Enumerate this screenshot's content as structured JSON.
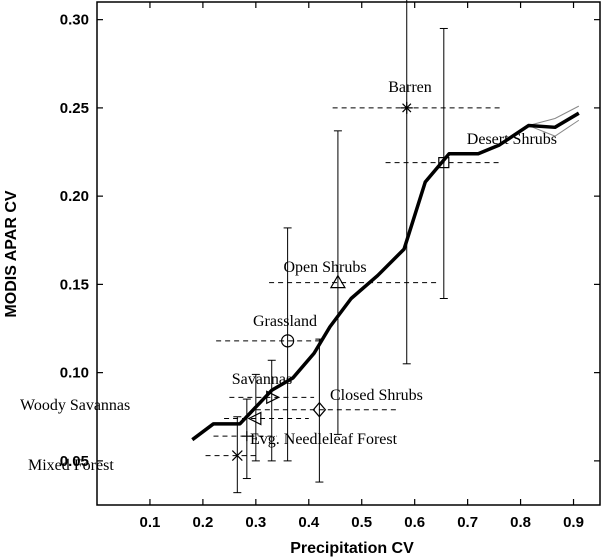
{
  "chart_data": {
    "type": "scatter",
    "xlabel": "Precipitation CV",
    "ylabel": "MODIS APAR CV",
    "xlim": [
      0.0,
      0.95
    ],
    "ylim": [
      0.025,
      0.31
    ],
    "xticks": [
      "0.1",
      "0.2",
      "0.3",
      "0.4",
      "0.5",
      "0.6",
      "0.7",
      "0.8",
      "0.9"
    ],
    "yticks": [
      "0.05",
      "0.10",
      "0.15",
      "0.20",
      "0.25",
      "0.30"
    ],
    "grid": false,
    "line": {
      "x": [
        0.18,
        0.22,
        0.27,
        0.33,
        0.37,
        0.41,
        0.44,
        0.48,
        0.53,
        0.58,
        0.62,
        0.665,
        0.72,
        0.76,
        0.815,
        0.865,
        0.91
      ],
      "y": [
        0.062,
        0.071,
        0.071,
        0.09,
        0.097,
        0.111,
        0.126,
        0.142,
        0.155,
        0.17,
        0.208,
        0.224,
        0.224,
        0.229,
        0.24,
        0.239,
        0.247
      ],
      "band_upper": [
        0.24,
        0.244,
        0.251
      ],
      "band_lower": [
        0.24,
        0.234,
        0.243
      ],
      "band_x": [
        0.815,
        0.865,
        0.91
      ]
    },
    "points": [
      {
        "label": "Barren",
        "marker": "asterisk",
        "x": 0.585,
        "y": 0.25,
        "xerr": [
          0.445,
          0.765
        ],
        "yerr": [
          0.105,
          0.32
        ]
      },
      {
        "label": "Desert Shrubs",
        "marker": "square",
        "x": 0.655,
        "y": 0.219,
        "xerr": [
          0.545,
          0.765
        ],
        "yerr": [
          0.142,
          0.295
        ]
      },
      {
        "label": "Open Shrubs",
        "marker": "triangle",
        "x": 0.455,
        "y": 0.151,
        "xerr": [
          0.325,
          0.645
        ],
        "yerr": [
          0.065,
          0.237
        ]
      },
      {
        "label": "Grassland",
        "marker": "circle",
        "x": 0.36,
        "y": 0.118,
        "xerr": [
          0.225,
          0.425
        ],
        "yerr": [
          0.05,
          0.182
        ]
      },
      {
        "label": "Savannas",
        "marker": "triangle-right",
        "x": 0.33,
        "y": 0.086,
        "xerr": [
          0.25,
          0.41
        ],
        "yerr": [
          0.05,
          0.107
        ]
      },
      {
        "label": "Closed Shrubs",
        "marker": "diamond",
        "x": 0.42,
        "y": 0.079,
        "xerr": [
          0.3,
          0.57
        ],
        "yerr": [
          0.038,
          0.119
        ]
      },
      {
        "label": "Woody Savannas",
        "marker": "triangle-left",
        "x": 0.3,
        "y": 0.074,
        "xerr": [
          0.24,
          0.4
        ],
        "yerr": [
          0.05,
          0.099
        ]
      },
      {
        "label": "Evg. Needleleaf Forest",
        "marker": "plus",
        "x": 0.283,
        "y": 0.064,
        "xerr": [
          0.22,
          0.34
        ],
        "yerr": [
          0.04,
          0.085
        ]
      },
      {
        "label": "Mixed Forest",
        "marker": "x",
        "x": 0.265,
        "y": 0.053,
        "xerr": [
          0.205,
          0.3
        ],
        "yerr": [
          0.032,
          0.075
        ]
      }
    ]
  }
}
